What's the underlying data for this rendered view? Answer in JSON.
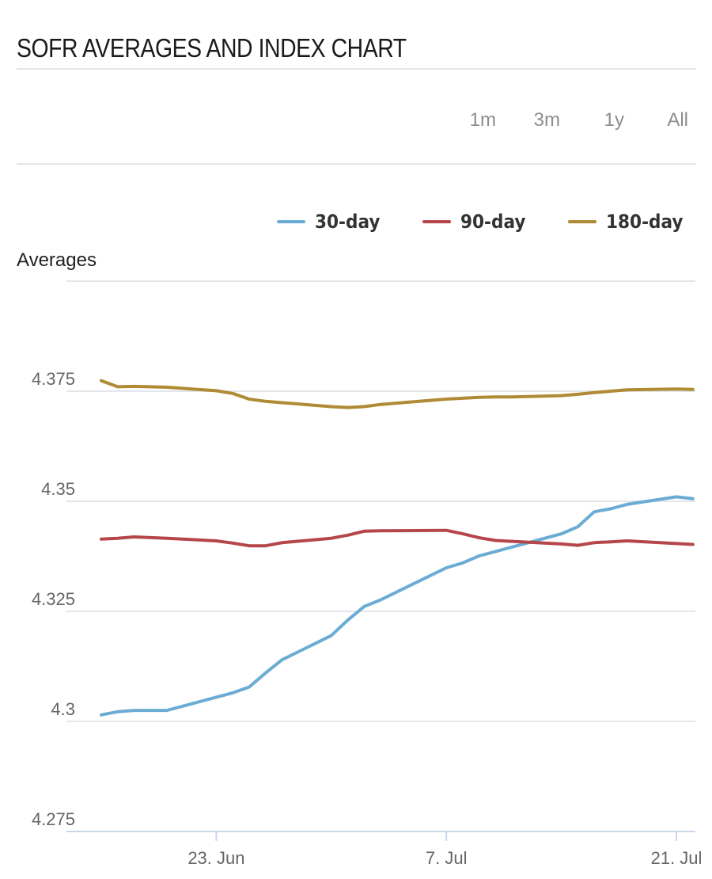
{
  "header": {
    "title": "SOFR AVERAGES AND INDEX CHART"
  },
  "range_selector": {
    "buttons": [
      "1m",
      "3m",
      "1y",
      "All"
    ]
  },
  "colors": {
    "d30": "#6aacd4",
    "d90": "#b5474a",
    "d180": "#b08a34",
    "grid": "#e3e6ea",
    "axis": "#ccd6eb"
  },
  "chart_data": {
    "type": "line",
    "title": "SOFR AVERAGES AND INDEX CHART",
    "ylabel": "Averages",
    "xlabel": "",
    "ylim": [
      4.275,
      4.4
    ],
    "yticks": [
      4.275,
      4.3,
      4.325,
      4.35,
      4.375
    ],
    "ytick_labels": [
      "4.275",
      "4.3",
      "4.325",
      "4.35",
      "4.375"
    ],
    "xticks": [
      "2025-06-23",
      "2025-07-07",
      "2025-07-21"
    ],
    "xtick_labels": [
      "23. Jun",
      "7. Jul",
      "21. Jul"
    ],
    "grid": true,
    "legend_position": "top-right",
    "x": [
      "2025-06-16",
      "2025-06-17",
      "2025-06-18",
      "2025-06-20",
      "2025-06-23",
      "2025-06-24",
      "2025-06-25",
      "2025-06-26",
      "2025-06-27",
      "2025-06-30",
      "2025-07-01",
      "2025-07-02",
      "2025-07-03",
      "2025-07-07",
      "2025-07-08",
      "2025-07-09",
      "2025-07-10",
      "2025-07-11",
      "2025-07-14",
      "2025-07-15",
      "2025-07-16",
      "2025-07-17",
      "2025-07-18",
      "2025-07-21",
      "2025-07-22"
    ],
    "series": [
      {
        "name": "30-day",
        "values": [
          4.3015,
          4.3022,
          4.3025,
          4.3025,
          4.3055,
          4.3065,
          4.3078,
          4.311,
          4.314,
          4.3195,
          4.323,
          4.3261,
          4.3276,
          4.3349,
          4.336,
          4.3376,
          4.3386,
          4.3396,
          4.3426,
          4.3442,
          4.3476,
          4.3483,
          4.3493,
          4.351,
          4.3506
        ]
      },
      {
        "name": "90-day",
        "values": [
          4.3414,
          4.3416,
          4.3419,
          4.3416,
          4.341,
          4.3405,
          4.3399,
          4.3399,
          4.3406,
          4.3416,
          4.3423,
          4.3432,
          4.3433,
          4.3434,
          4.3426,
          4.3417,
          4.3411,
          4.3409,
          4.3403,
          4.34,
          4.3406,
          4.3408,
          4.341,
          4.3404,
          4.3402
        ]
      },
      {
        "name": "180-day",
        "values": [
          4.3774,
          4.376,
          4.3761,
          4.3759,
          4.3751,
          4.3745,
          4.3732,
          4.3727,
          4.3724,
          4.3715,
          4.3713,
          4.3715,
          4.372,
          4.3732,
          4.3734,
          4.3736,
          4.3737,
          4.3737,
          4.374,
          4.3743,
          4.3747,
          4.375,
          4.3753,
          4.3755,
          4.3754
        ]
      }
    ]
  }
}
